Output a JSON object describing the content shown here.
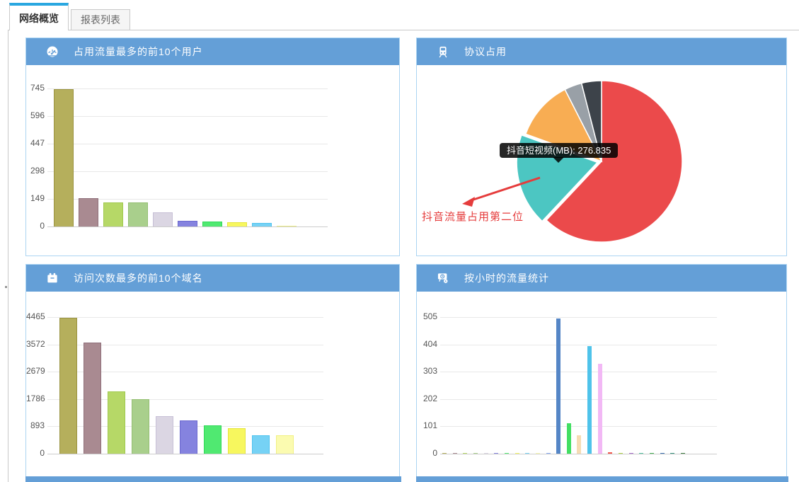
{
  "tabs": [
    {
      "label": "网络概览",
      "active": true
    },
    {
      "label": "报表列表",
      "active": false
    }
  ],
  "colors": {
    "panel_header": "#649fd7",
    "panel_border": "#abd4f2",
    "tab_accent": "#2aa7e0",
    "annotation_red": "#e53c3c",
    "tooltip_bg": "rgba(0,0,0,0.85)",
    "grid_line": "#e8e8e8",
    "axis_label": "#555555"
  },
  "panels": [
    {
      "id": "top_users",
      "title": "占用流量最多的前10个用户",
      "icon": "gauge-icon"
    },
    {
      "id": "protocol",
      "title": "协议占用",
      "icon": "train-icon"
    },
    {
      "id": "top_domains",
      "title": "访问次数最多的前10个域名",
      "icon": "calendar-icon"
    },
    {
      "id": "hourly",
      "title": "按小时的流量统计",
      "icon": "scheduled-task-icon"
    }
  ],
  "chart_data": [
    {
      "id": "top_users",
      "type": "bar",
      "title": "占用流量最多的前10个用户",
      "ylim": [
        0,
        745
      ],
      "yticks": [
        0,
        149,
        298,
        447,
        596,
        745
      ],
      "xticklabels_visible": false,
      "grid": true,
      "legend": false,
      "values": [
        740,
        153,
        131,
        129,
        76,
        31,
        26,
        24,
        20,
        4
      ],
      "bar_fill": [
        "#b5af5c",
        "#a98a91",
        "#b6d867",
        "#a9cf8c",
        "#dbd6e3",
        "#8583df",
        "#50e971",
        "#f7f75e",
        "#76d2f5",
        "#fbfbb0"
      ],
      "bar_border": [
        "#9a9340",
        "#8f6f7a",
        "#a0c94e",
        "#94bf72",
        "#c7c0d6",
        "#6b68cf",
        "#2fd957",
        "#e5e53c",
        "#4fc3ef",
        "#f0f084"
      ]
    },
    {
      "id": "protocol",
      "type": "pie",
      "title": "协议占用",
      "legend": false,
      "slices": [
        {
          "label": "",
          "percent": 62.0,
          "color": "#eb4a4b"
        },
        {
          "label": "抖音短视频",
          "value_mb": 276.835,
          "percent": 18.5,
          "color": "#4cc6c2",
          "exploded": true
        },
        {
          "label": "",
          "percent": 12.0,
          "color": "#f8ad53"
        },
        {
          "label": "",
          "percent": 3.5,
          "color": "#99a0a7"
        },
        {
          "label": "",
          "percent": 4.0,
          "color": "#3d434a"
        }
      ],
      "tooltip": "抖音短视频(MB): 276.835",
      "annotation": "抖音流量占用第二位"
    },
    {
      "id": "top_domains",
      "type": "bar",
      "title": "访问次数最多的前10个域名",
      "ylim": [
        0,
        4465
      ],
      "yticks": [
        0,
        893,
        1786,
        2679,
        3572,
        4465
      ],
      "xticklabels_visible": false,
      "grid": true,
      "legend": false,
      "values": [
        4450,
        3630,
        2040,
        1780,
        1230,
        1090,
        925,
        830,
        600,
        590
      ],
      "bar_fill": [
        "#b5af5c",
        "#a98a91",
        "#b6d867",
        "#a9cf8c",
        "#dbd6e3",
        "#8583df",
        "#50e971",
        "#f7f75e",
        "#76d2f5",
        "#fbfbb0"
      ],
      "bar_border": [
        "#9a9340",
        "#8f6f7a",
        "#a0c94e",
        "#94bf72",
        "#c7c0d6",
        "#6b68cf",
        "#2fd957",
        "#e5e53c",
        "#4fc3ef",
        "#f0f084"
      ]
    },
    {
      "id": "hourly",
      "type": "bar",
      "title": "按小时的流量统计",
      "ylim": [
        0,
        505
      ],
      "yticks": [
        0,
        101,
        202,
        303,
        404,
        505
      ],
      "xticklabels_visible": false,
      "grid": true,
      "legend": false,
      "values": [
        3,
        3,
        3,
        3,
        3,
        3,
        3,
        3,
        3,
        3,
        3,
        500,
        112,
        68,
        398,
        333,
        4,
        3,
        3,
        3,
        3,
        3,
        3,
        3
      ],
      "bar_fill": [
        "#b5af5c",
        "#a98a91",
        "#b6d867",
        "#a9cf8c",
        "#dbd6e3",
        "#8583df",
        "#50e971",
        "#f7f75e",
        "#76d2f5",
        "#fbfbb0",
        "#86a8f0",
        "#5586c6",
        "#43df63",
        "#f6dcb4",
        "#4fc3ea",
        "#f2b8f5",
        "#f25a50",
        "#b0d34a",
        "#a66bca",
        "#52c0a0",
        "#47b054",
        "#3a6fb0",
        "#35917d",
        "#3f7d42"
      ]
    }
  ]
}
